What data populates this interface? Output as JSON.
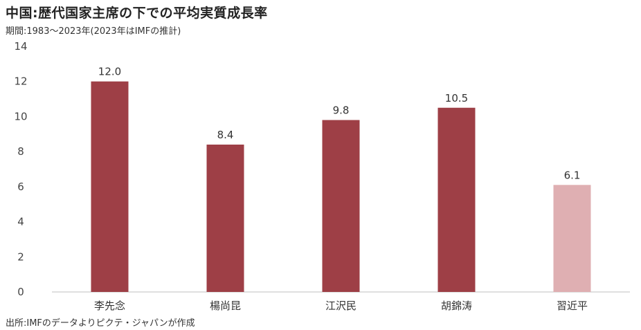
{
  "title": "中国:歴代国家主席の下での平均実質成長率",
  "subtitle": "期間:1983～2023年(2023年はIMFの推計)",
  "source": "出所:IMFのデータよりピクテ・ジャパンが作成",
  "chart_data": {
    "type": "bar",
    "categories": [
      "李先念",
      "楊尚昆",
      "江沢民",
      "胡錦涛",
      "習近平"
    ],
    "values": [
      12.0,
      8.4,
      9.8,
      10.5,
      6.1
    ],
    "value_labels": [
      "12.0",
      "8.4",
      "9.8",
      "10.5",
      "6.1"
    ],
    "bar_colors": [
      "#9e3f46",
      "#9e3f46",
      "#9e3f46",
      "#9e3f46",
      "#dfafb2"
    ],
    "ylim": [
      0,
      14
    ],
    "yticks": [
      0,
      2,
      4,
      6,
      8,
      10,
      12,
      14
    ],
    "grid": false,
    "xlabel": "",
    "ylabel": ""
  }
}
